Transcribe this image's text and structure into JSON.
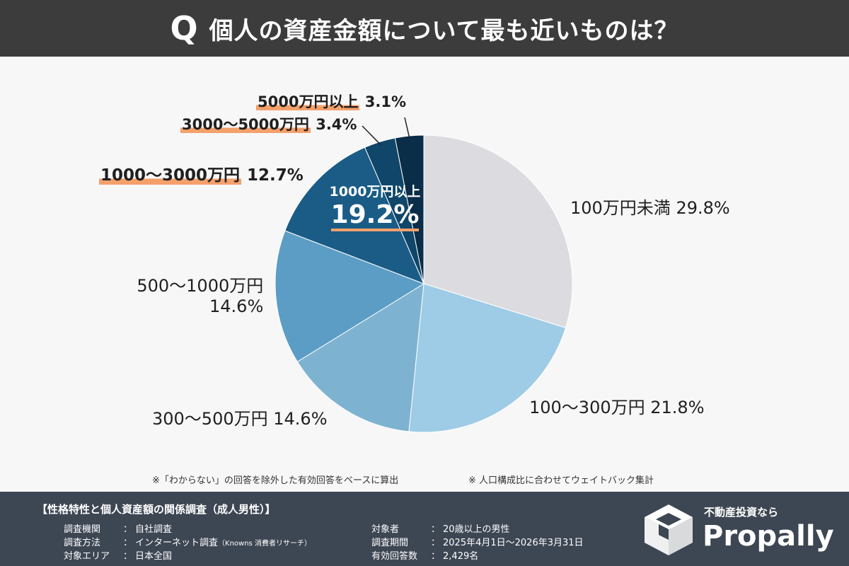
{
  "header": {
    "q_mark": "Q",
    "title": "個人の資産金額について最も近いものは？"
  },
  "chart_data": {
    "type": "pie",
    "start": "12-o'clock",
    "direction": "clockwise",
    "slices": [
      {
        "label": "100万円未満",
        "value": 29.8,
        "value_label": "29.8%",
        "color": "#dcdce0"
      },
      {
        "label": "100〜300万円",
        "value": 21.8,
        "value_label": "21.8%",
        "color": "#9ecbe6"
      },
      {
        "label": "300〜500万円",
        "value": 14.6,
        "value_label": "14.6%",
        "color": "#7eb2d1"
      },
      {
        "label": "500〜1000万円",
        "value": 14.6,
        "value_label": "14.6%",
        "color": "#5b9dc4"
      },
      {
        "label": "1000〜3000万円",
        "value": 12.7,
        "value_label": "12.7%",
        "color": "#1a5c86"
      },
      {
        "label": "3000〜5000万円",
        "value": 3.4,
        "value_label": "3.4%",
        "color": "#0f4669"
      },
      {
        "label": "5000万円以上",
        "value": 3.1,
        "value_label": "3.1%",
        "color": "#0a2d48"
      }
    ],
    "group_annotation": {
      "label": "1000万円以上",
      "value": 19.2,
      "value_label": "19.2%"
    }
  },
  "notes": [
    "※「わからない」の回答を除外した有効回答をベースに算出",
    "※ 人口構成比に合わせてウェイトバック集計"
  ],
  "footer": {
    "title": "【性格特性と個人資産額の関係調査（成人男性）】",
    "left": [
      {
        "key": "調査機関",
        "value": "自社調査",
        "extra": ""
      },
      {
        "key": "調査方法",
        "value": "インターネット調査",
        "extra": "（Knowns 消費者リサーチ）"
      },
      {
        "key": "対象エリア",
        "value": "日本全国",
        "extra": ""
      }
    ],
    "right": [
      {
        "key": "対象者",
        "value": "20歳以上の男性"
      },
      {
        "key": "調査期間",
        "value": "2025年4月1日〜2026年3月31日"
      },
      {
        "key": "有効回答数",
        "value": "2,429名"
      }
    ],
    "separator": "：",
    "logo_tagline": "不動産投資なら",
    "logo_brand": "Propally"
  }
}
